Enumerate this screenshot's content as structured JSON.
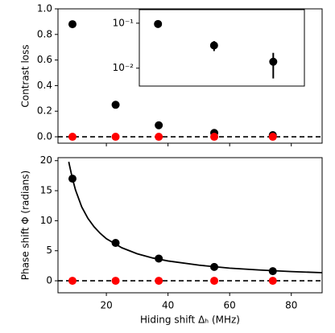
{
  "chart_data": [
    {
      "type": "scatter",
      "ylabel": "Contrast loss",
      "x": [
        9,
        23,
        37,
        55,
        74
      ],
      "series": [
        {
          "color": "#000000",
          "values": [
            0.88,
            0.25,
            0.09,
            0.03,
            0.013
          ],
          "errors": [
            0.005,
            0.02,
            0.01,
            0.005,
            0.005
          ]
        },
        {
          "color": "#ff0000",
          "values": [
            0,
            0,
            0,
            0,
            0
          ]
        }
      ],
      "hline": 0,
      "xlim": [
        4.3,
        90
      ],
      "ylim": [
        -0.05,
        1.0
      ],
      "xticks": [
        20,
        40,
        60,
        80
      ],
      "xtick_labels": false,
      "yticks": [
        {
          "value": 0,
          "label": "0.0"
        },
        0.2,
        0.4,
        0.6,
        0.8,
        {
          "value": 1,
          "label": "1.0"
        }
      ]
    },
    {
      "type": "scatter",
      "yscale": "log",
      "x": [
        37,
        55,
        74
      ],
      "series": [
        {
          "color": "#000000",
          "values": [
            0.096,
            0.032,
            0.0139
          ],
          "errors": [
            0.015,
            0.008,
            0.008
          ]
        }
      ],
      "xlim": [
        31,
        84
      ],
      "ylim": [
        0.004,
        0.2
      ],
      "yticks": [
        {
          "value": 0.1,
          "label": "10⁻¹"
        },
        {
          "value": 0.01,
          "label": "10⁻²"
        }
      ]
    },
    {
      "type": "scatter",
      "ylabel": "Phase shift Φ (radians)",
      "xlabel": "Hiding shift Δₕ (MHz)",
      "x": [
        9,
        23,
        37,
        55,
        74
      ],
      "series": [
        {
          "color": "#000000",
          "values": [
            17,
            6.3,
            3.7,
            2.3,
            1.6
          ]
        },
        {
          "color": "#ff0000",
          "values": [
            0,
            0,
            0,
            0,
            0
          ]
        }
      ],
      "fit": {
        "color": "#000000",
        "x": [
          7.8,
          8,
          9,
          10,
          12,
          14,
          16,
          18,
          20,
          25,
          30,
          35,
          40,
          50,
          60,
          70,
          80,
          90
        ],
        "values": [
          19.8,
          19.3,
          17.0,
          15.1,
          12.3,
          10.4,
          9.0,
          7.9,
          7.0,
          5.5,
          4.5,
          3.8,
          3.3,
          2.6,
          2.1,
          1.78,
          1.53,
          1.35
        ]
      },
      "hline": 0,
      "xlim": [
        4.3,
        90
      ],
      "ylim": [
        -2,
        20.5
      ],
      "xticks": [
        20,
        40,
        60,
        80
      ],
      "xtick_labels": true,
      "yticks": [
        0,
        5,
        10,
        15,
        20
      ]
    }
  ]
}
